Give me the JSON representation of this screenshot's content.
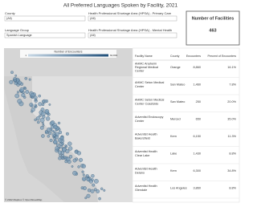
{
  "header": {
    "title": "All Preferred Languages Spoken by Facility, 2021"
  },
  "filters": [
    {
      "label": "County",
      "value": "(All)"
    },
    {
      "label": "Health Professional Shortage Area (HPSA) - Primary Care",
      "value": "(All)"
    },
    {
      "label": "Language Group",
      "value": "Spanish Language"
    },
    {
      "label": "Health Professional Shortage Area (HPSA) - Mental Health",
      "value": "(All)"
    }
  ],
  "kpi": {
    "label": "Number of Facilities",
    "value": "463"
  },
  "map": {
    "legend_title": "Number of Encounters",
    "legend_min": "1",
    "legend_max": "60,893",
    "attribution": "© 2022 Mapbox © OpenStreetMap"
  },
  "table": {
    "columns": [
      "Facility Name",
      "County",
      "Encounters",
      "Percent of Encounters"
    ],
    "rows": [
      [
        "AHMC Anaheim Regional Medical Center",
        "Orange",
        "8,860",
        "16.1%"
      ],
      [
        "AHMC Seton Medical Center",
        "San Mateo",
        "1,460",
        "7.8%"
      ],
      [
        "AHMC Seton Medical Center Coastside",
        "San Mateo",
        "250",
        "20.0%"
      ],
      [
        "Adventist Endoscopy Center",
        "Merced",
        "650",
        "35.0%"
      ],
      [
        "Adventist Health Bakersfield",
        "Kern",
        "6,150",
        "11.3%"
      ],
      [
        "Adventist Health Clear Lake",
        "Lake",
        "1,430",
        "8.8%"
      ],
      [
        "Adventist Health Delano",
        "Kern",
        "6,300",
        "34.8%"
      ],
      [
        "Adventist Health Glendale",
        "Los Angeles",
        "3,860",
        "8.8%"
      ]
    ]
  }
}
